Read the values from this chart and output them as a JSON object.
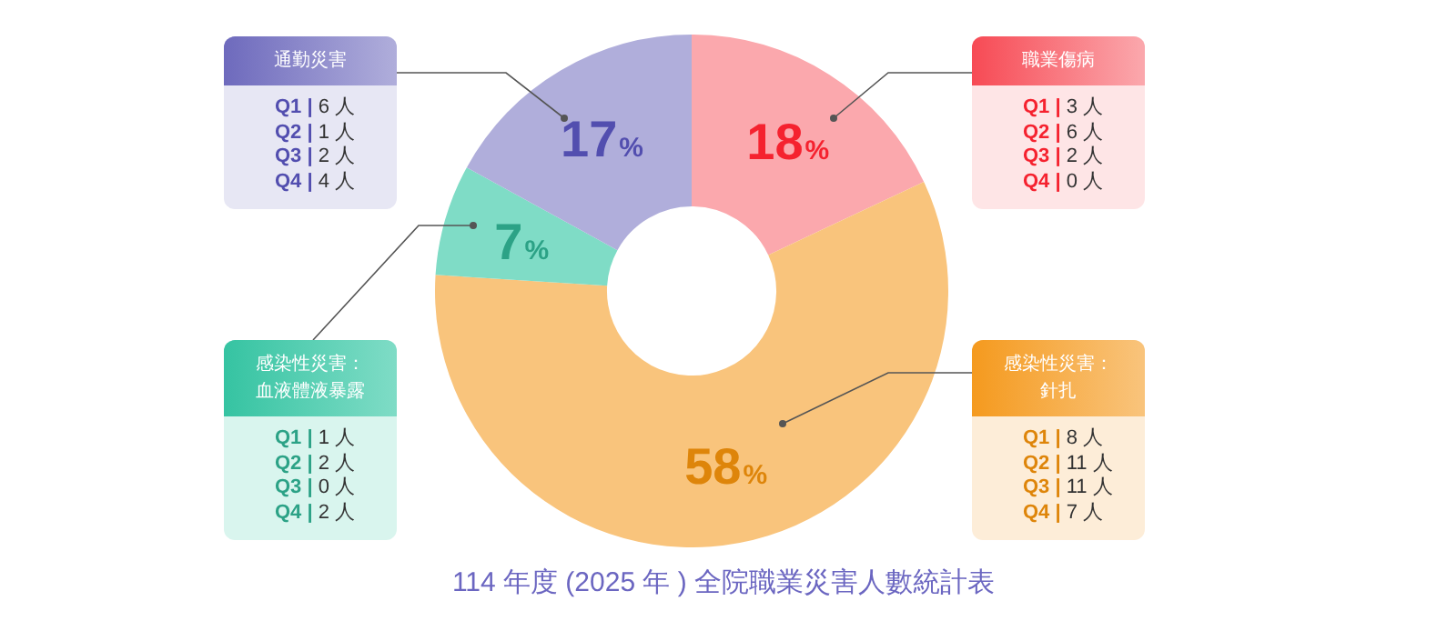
{
  "chart_data": {
    "type": "donut",
    "title": "114 年度 (2025 年 ) 全院職業災害人數統計表",
    "categories": [
      "職業傷病",
      "感染性災害：針扎",
      "感染性災害：血液體液暴露",
      "通勤災害"
    ],
    "values": [
      18,
      58,
      7,
      17
    ],
    "colors": [
      "#fba8ad",
      "#f9c47c",
      "#7fdcc6",
      "#b0aedb"
    ],
    "value_labels": [
      "18%",
      "58%",
      "7%",
      "17%"
    ],
    "annotations": [
      "Q1 | 3 人",
      "Q2 | 6 人",
      "Q3 | 2 人",
      "Q4 | 0 人",
      "Q1 | 8 人",
      "Q2 | 11 人",
      "Q3 | 11 人",
      "Q4 | 7 人",
      "Q1 | 1 人",
      "Q2 | 2 人",
      "Q3 | 0 人",
      "Q4 | 2 人",
      "Q1 | 6 人",
      "Q2 | 1 人",
      "Q3 | 2 人",
      "Q4 | 4 人"
    ]
  }
}
